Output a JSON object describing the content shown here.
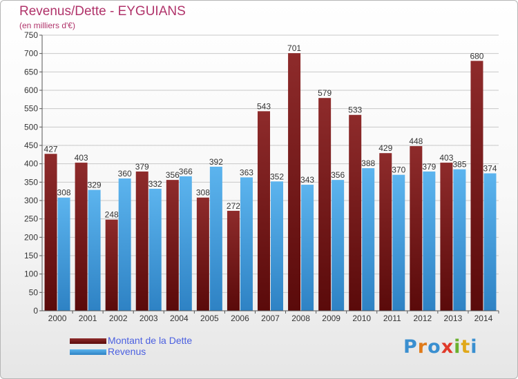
{
  "chart_data": {
    "type": "bar",
    "title": "Revenus/Dette - EYGUIANS",
    "subtitle": "(en milliers d'€)",
    "categories": [
      "2000",
      "2001",
      "2002",
      "2003",
      "2004",
      "2005",
      "2006",
      "2007",
      "2008",
      "2009",
      "2010",
      "2011",
      "2012",
      "2013",
      "2014"
    ],
    "series": [
      {
        "name": "Montant de la Dette",
        "color": "#7a1a1a",
        "values": [
          427,
          403,
          248,
          379,
          356,
          308,
          272,
          543,
          701,
          579,
          533,
          429,
          448,
          403,
          680
        ]
      },
      {
        "name": "Revenus",
        "color": "#4aa3e0",
        "values": [
          308,
          329,
          360,
          332,
          366,
          392,
          363,
          352,
          343,
          356,
          388,
          370,
          379,
          385,
          374
        ]
      }
    ],
    "ylim": [
      0,
      750
    ],
    "yticks": [
      0,
      50,
      100,
      150,
      200,
      250,
      300,
      350,
      400,
      450,
      500,
      550,
      600,
      650,
      700,
      750
    ],
    "grid": true,
    "legend_position": "bottom-left"
  },
  "logo": {
    "letters": [
      {
        "char": "P",
        "color": "#3a8fd0"
      },
      {
        "char": "r",
        "color": "#e07b1a"
      },
      {
        "char": "o",
        "color": "#3a8fd0"
      },
      {
        "char": "x",
        "color": "#e03a2a"
      },
      {
        "char": "i",
        "color": "#6ab02e"
      },
      {
        "char": "t",
        "color": "#e0a81a"
      },
      {
        "char": "i",
        "color": "#3a8fd0"
      }
    ]
  }
}
